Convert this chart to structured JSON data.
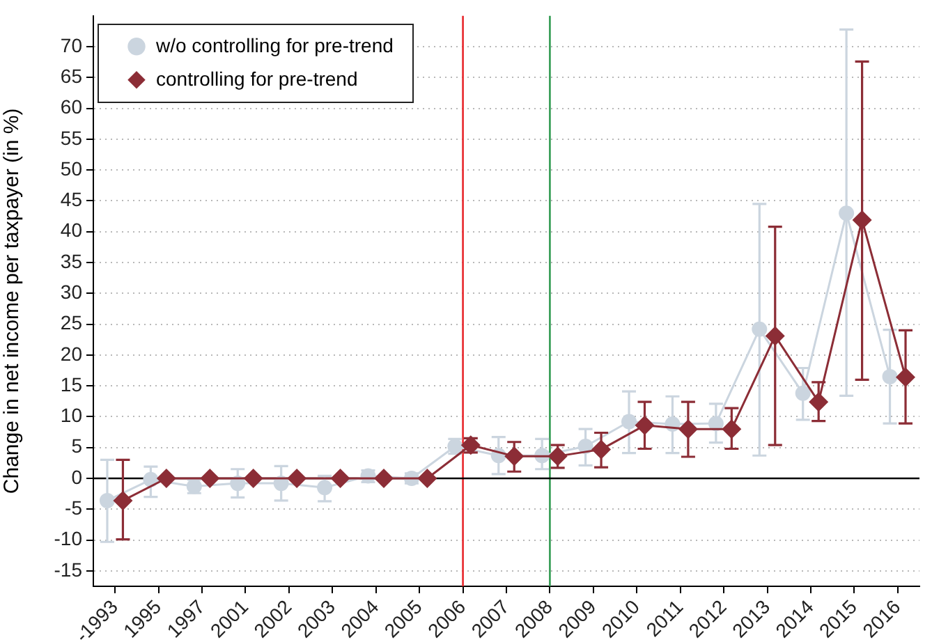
{
  "chart_data": {
    "type": "line",
    "ylabel": "Change in net income per taxpayer (in %)",
    "categories": [
      "-1993",
      "1995",
      "1997",
      "2001",
      "2002",
      "2003",
      "2004",
      "2005",
      "2006",
      "2007",
      "2008",
      "2009",
      "2010",
      "2011",
      "2012",
      "2013",
      "2014",
      "2015",
      "2016"
    ],
    "series": [
      {
        "name": "w/o controlling for pre-trend",
        "color": "#cbd5df",
        "marker": "circle",
        "values": [
          -3.6,
          -0.2,
          -1.3,
          -0.8,
          -0.8,
          -1.5,
          0.4,
          0.0,
          5.2,
          3.7,
          3.7,
          5.2,
          9.2,
          8.8,
          8.9,
          24.2,
          13.8,
          43.0,
          16.5
        ],
        "errors": [
          [
            -10.3,
            3.0
          ],
          [
            -3.0,
            1.9
          ],
          [
            -2.4,
            -0.2
          ],
          [
            -3.1,
            1.5
          ],
          [
            -3.6,
            2.0
          ],
          [
            -3.7,
            0.4
          ],
          [
            -0.6,
            1.3
          ],
          [
            -0.8,
            0.8
          ],
          [
            4.0,
            6.4
          ],
          [
            0.7,
            6.7
          ],
          [
            1.5,
            6.4
          ],
          [
            2.1,
            8.0
          ],
          [
            4.1,
            14.1
          ],
          [
            4.1,
            13.3
          ],
          [
            5.8,
            12.1
          ],
          [
            3.7,
            44.5
          ],
          [
            9.5,
            17.9
          ],
          [
            13.4,
            72.8
          ],
          [
            8.9,
            24.1
          ]
        ]
      },
      {
        "name": "controlling for pre-trend",
        "color": "#8c2d36",
        "marker": "diamond",
        "values": [
          -3.6,
          0,
          0,
          0,
          0,
          0,
          0,
          0,
          5.4,
          3.6,
          3.6,
          4.7,
          8.6,
          8.0,
          8.0,
          23.1,
          12.4,
          41.9,
          16.4
        ],
        "errors": [
          [
            -9.9,
            3.0
          ],
          null,
          null,
          null,
          null,
          null,
          null,
          null,
          [
            4.2,
            6.5
          ],
          [
            1.1,
            5.9
          ],
          [
            1.7,
            5.4
          ],
          [
            1.8,
            7.4
          ],
          [
            4.8,
            12.4
          ],
          [
            3.5,
            12.4
          ],
          [
            4.8,
            11.4
          ],
          [
            5.4,
            40.8
          ],
          [
            9.3,
            15.6
          ],
          [
            16.0,
            67.6
          ],
          [
            8.9,
            24.0
          ]
        ]
      }
    ],
    "ylim": [
      -17.5,
      75
    ],
    "yticks": [
      -15,
      -10,
      -5,
      0,
      5,
      10,
      15,
      20,
      25,
      30,
      35,
      40,
      45,
      50,
      55,
      60,
      65,
      70
    ],
    "grid": "y",
    "legend": "top left",
    "ref_lines": [
      {
        "axis": "x",
        "value": "2006",
        "color": "#e8262b"
      },
      {
        "axis": "x",
        "value": "2008",
        "color": "#2f9a50"
      },
      {
        "axis": "y",
        "value": 0,
        "color": "#000000"
      }
    ]
  }
}
